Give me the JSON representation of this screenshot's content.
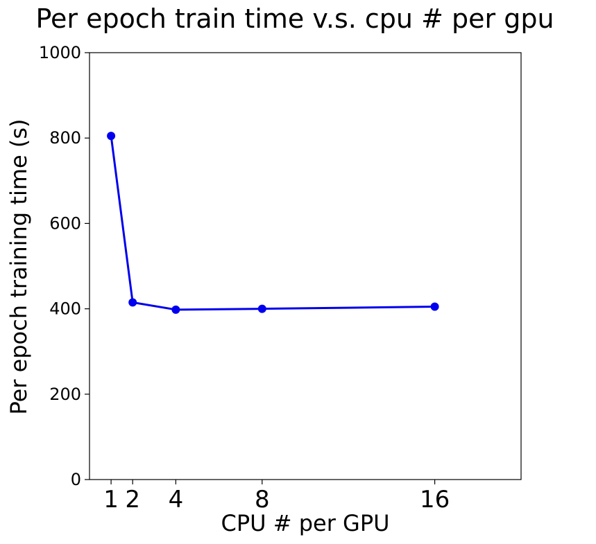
{
  "chart_data": {
    "type": "line",
    "title": "Per epoch train time v.s. cpu # per gpu",
    "xlabel": "CPU # per GPU",
    "ylabel": "Per epoch training time (s)",
    "x": [
      1,
      2,
      4,
      8,
      16
    ],
    "x_tick_labels": [
      "1",
      "2",
      "4",
      "8",
      "16"
    ],
    "y_ticks": [
      0,
      200,
      400,
      600,
      800,
      1000
    ],
    "y_tick_labels": [
      "0",
      "200",
      "400",
      "600",
      "800",
      "1000"
    ],
    "xlim": [
      0,
      20
    ],
    "ylim": [
      0,
      1000
    ],
    "series": [
      {
        "values": [
          805,
          415,
          398,
          400,
          405
        ],
        "color": "#0000ee",
        "marker": "circle"
      }
    ],
    "grid": false,
    "legend": "none"
  }
}
